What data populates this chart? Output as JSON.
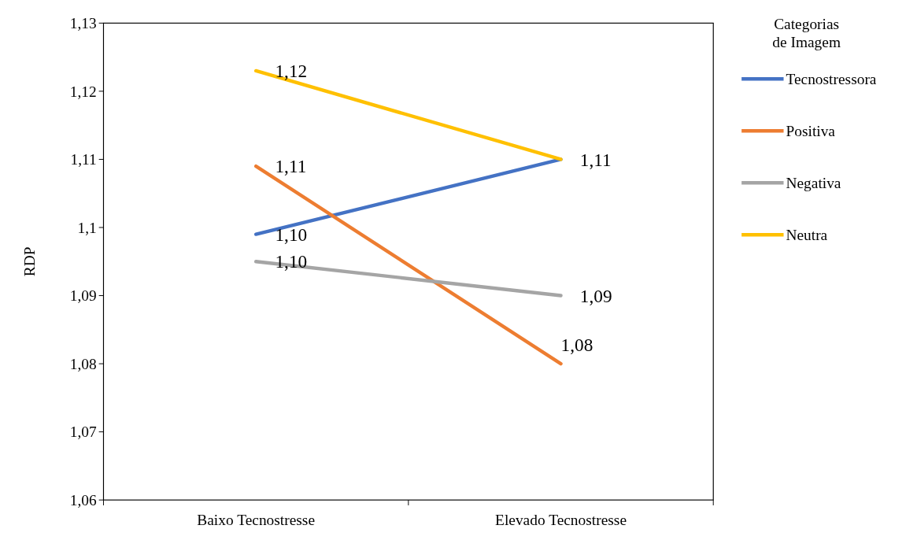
{
  "chart_data": {
    "type": "line",
    "ylabel": "RDP",
    "legend_title": "Categorias\nde Imagem",
    "legend": "right",
    "categories": [
      "Baixo Tecnostresse",
      "Elevado Tecnostresse"
    ],
    "ylim": [
      1.06,
      1.13
    ],
    "yticks": [
      {
        "value": 1.06,
        "label": "1,06"
      },
      {
        "value": 1.07,
        "label": "1,07"
      },
      {
        "value": 1.08,
        "label": "1,08"
      },
      {
        "value": 1.09,
        "label": "1,09"
      },
      {
        "value": 1.1,
        "label": "1,1"
      },
      {
        "value": 1.11,
        "label": "1,11"
      },
      {
        "value": 1.12,
        "label": "1,12"
      },
      {
        "value": 1.13,
        "label": "1,13"
      }
    ],
    "grid": false,
    "marker": "none",
    "line_style": "solid",
    "series": [
      {
        "name": "Tecnostressora",
        "color": "#4472c4",
        "values": [
          1.099,
          1.11
        ],
        "value_labels": [
          "1,10",
          "1,11"
        ]
      },
      {
        "name": "Positiva",
        "color": "#ed7d31",
        "values": [
          1.109,
          1.08
        ],
        "value_labels": [
          "1,11",
          "1,08"
        ]
      },
      {
        "name": "Negativa",
        "color": "#a5a5a5",
        "values": [
          1.095,
          1.09
        ],
        "value_labels": [
          "1,10",
          "1,09"
        ]
      },
      {
        "name": "Neutra",
        "color": "#ffc000",
        "values": [
          1.123,
          1.11
        ],
        "value_labels": [
          "1,12",
          null
        ]
      }
    ]
  }
}
